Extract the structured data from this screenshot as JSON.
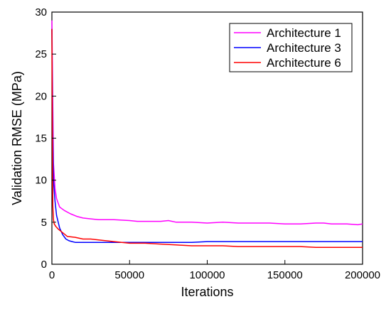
{
  "chart_data": {
    "type": "line",
    "title": "",
    "xlabel": "Iterations",
    "ylabel": "Validation RMSE (MPa)",
    "xlim": [
      0,
      200000
    ],
    "ylim": [
      0,
      30
    ],
    "x_ticks": [
      0,
      50000,
      100000,
      150000,
      200000
    ],
    "x_tick_labels": [
      "0",
      "50000",
      "100000",
      "150000",
      "200000"
    ],
    "y_ticks": [
      0,
      5,
      10,
      15,
      20,
      25,
      30
    ],
    "y_tick_labels": [
      "0",
      "5",
      "10",
      "15",
      "20",
      "25",
      "30"
    ],
    "grid": false,
    "legend_position": "top-right",
    "series": [
      {
        "name": "Architecture 1",
        "color": "#ff00ff",
        "x": [
          0,
          500,
          1000,
          2000,
          3000,
          5000,
          8000,
          12000,
          16000,
          20000,
          25000,
          30000,
          40000,
          50000,
          55000,
          60000,
          70000,
          75000,
          80000,
          90000,
          100000,
          110000,
          120000,
          130000,
          140000,
          150000,
          160000,
          170000,
          175000,
          180000,
          190000,
          197000,
          200000
        ],
        "y": [
          29,
          20,
          12,
          9,
          7.8,
          6.8,
          6.4,
          6.0,
          5.7,
          5.5,
          5.4,
          5.3,
          5.3,
          5.2,
          5.1,
          5.1,
          5.1,
          5.2,
          5.0,
          5.0,
          4.9,
          5.0,
          4.9,
          4.9,
          4.9,
          4.8,
          4.8,
          4.9,
          4.9,
          4.8,
          4.8,
          4.7,
          4.8
        ]
      },
      {
        "name": "Architecture 3",
        "color": "#0000ff",
        "x": [
          0,
          500,
          1000,
          2000,
          3000,
          5000,
          7000,
          9000,
          11000,
          13000,
          15000,
          20000,
          30000,
          40000,
          50000,
          60000,
          70000,
          80000,
          90000,
          100000,
          110000,
          120000,
          130000,
          140000,
          150000,
          160000,
          170000,
          180000,
          190000,
          200000
        ],
        "y": [
          28,
          16,
          10,
          7.5,
          5.8,
          4.3,
          3.5,
          3.0,
          2.8,
          2.7,
          2.6,
          2.6,
          2.6,
          2.6,
          2.6,
          2.6,
          2.6,
          2.6,
          2.6,
          2.7,
          2.7,
          2.7,
          2.7,
          2.7,
          2.7,
          2.7,
          2.7,
          2.7,
          2.7,
          2.7
        ]
      },
      {
        "name": "Architecture 6",
        "color": "#ff0000",
        "x": [
          0,
          300,
          600,
          1000,
          1500,
          2500,
          4000,
          6000,
          8000,
          10000,
          15000,
          20000,
          25000,
          30000,
          40000,
          50000,
          60000,
          70000,
          80000,
          90000,
          100000,
          110000,
          120000,
          130000,
          140000,
          150000,
          160000,
          170000,
          180000,
          190000,
          200000
        ],
        "y": [
          28,
          15,
          7,
          5.3,
          4.8,
          4.5,
          4.2,
          3.9,
          3.6,
          3.3,
          3.2,
          3.0,
          3.0,
          2.9,
          2.7,
          2.5,
          2.5,
          2.4,
          2.3,
          2.2,
          2.2,
          2.2,
          2.1,
          2.1,
          2.1,
          2.1,
          2.1,
          2.0,
          2.0,
          2.0,
          2.0
        ]
      }
    ]
  }
}
